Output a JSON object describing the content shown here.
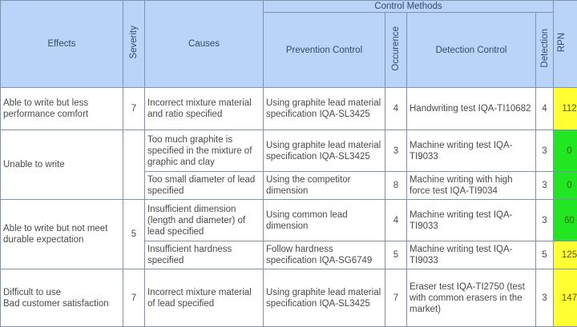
{
  "header": {
    "effects": "Effects",
    "severity": "Severity",
    "causes": "Causes",
    "control_methods": "Control Methods",
    "prevention_control": "Prevention Control",
    "occurrence": "Occurence",
    "detection_control": "Detection Control",
    "detection": "Detection",
    "rpn": "RPN"
  },
  "colors": {
    "header_bg": "#b9d4f8",
    "rpn_yellow": "#ffff33",
    "rpn_green": "#22e622"
  },
  "groups": [
    {
      "effect": "Able to write but less performance comfort",
      "severity": "7",
      "rows": [
        {
          "cause": "Incorrect mixture material and ratio specified",
          "prevention": "Using graphite lead material specification IQA-SL3425",
          "occurrence": "4",
          "detection_control": "Handwriting test IQA-TI10682",
          "detection": "4",
          "rpn": "112",
          "rpn_color": "yellow"
        }
      ]
    },
    {
      "effect": "Unable to write",
      "severity": "",
      "rows": [
        {
          "cause": "Too much graphite is specified in the mixture of graphic and clay",
          "prevention": "Using graphite lead material specification IQA-SL3425",
          "occurrence": "3",
          "detection_control": "Machine writing test IQA-TI9033",
          "detection": "3",
          "rpn": "0",
          "rpn_color": "green"
        },
        {
          "cause": "Too small diameter of lead specified",
          "prevention": "Using the competitor dimension",
          "occurrence": "8",
          "detection_control": "Machine writing with high force test IQA-TI9034",
          "detection": "3",
          "rpn": "0",
          "rpn_color": "green"
        }
      ]
    },
    {
      "effect": "Able to write but not meet durable expectation",
      "severity": "5",
      "rows": [
        {
          "cause": "Insufficient dimension (length and diameter) of lead specified",
          "prevention": "Using common lead dimension",
          "occurrence": "4",
          "detection_control": "Machine writing test IQA-TI9033",
          "detection": "3",
          "rpn": "60",
          "rpn_color": "green"
        },
        {
          "cause": "Insufficient hardness specified",
          "prevention": "Follow hardness specification IQA-SG6749",
          "occurrence": "5",
          "detection_control": "Machine writing test IQA-TI9033",
          "detection": "5",
          "rpn": "125",
          "rpn_color": "yellow"
        }
      ]
    },
    {
      "effect": "Difficult to use\nBad customer satisfaction",
      "severity": "7",
      "rows": [
        {
          "cause": "Incorrect mixture material of lead specified",
          "prevention": "Using graphite lead material specification IQA-SL3425",
          "occurrence": "7",
          "detection_control": "Eraser test IQA-TI2750 (test with common erasers in the market)",
          "detection": "3",
          "rpn": "147",
          "rpn_color": "yellow"
        }
      ]
    }
  ]
}
